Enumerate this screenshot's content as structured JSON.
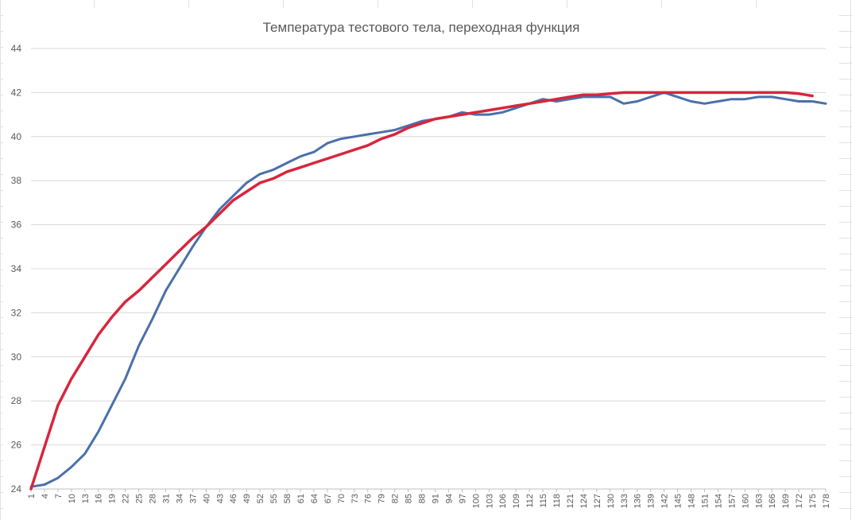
{
  "chart_data": {
    "type": "line",
    "title": "Температура тестового тела, переходная функция",
    "xlabel": "",
    "ylabel": "",
    "ylim": [
      24,
      44
    ],
    "yticks": [
      24,
      26,
      28,
      30,
      32,
      34,
      36,
      38,
      40,
      42,
      44
    ],
    "xlim": [
      1,
      178
    ],
    "xticks": [
      1,
      4,
      7,
      10,
      13,
      16,
      19,
      22,
      25,
      28,
      31,
      34,
      37,
      40,
      43,
      46,
      49,
      52,
      55,
      58,
      61,
      64,
      67,
      70,
      73,
      76,
      79,
      82,
      85,
      88,
      91,
      94,
      97,
      100,
      103,
      106,
      109,
      112,
      115,
      118,
      121,
      124,
      127,
      130,
      133,
      136,
      139,
      142,
      145,
      148,
      151,
      154,
      157,
      160,
      163,
      166,
      169,
      172,
      175,
      178
    ],
    "grid": true,
    "legend": "none",
    "series": [
      {
        "color": "#4a70aa",
        "x": [
          1,
          4,
          7,
          10,
          13,
          16,
          19,
          22,
          25,
          28,
          31,
          34,
          37,
          40,
          43,
          46,
          49,
          52,
          55,
          58,
          61,
          64,
          67,
          70,
          73,
          76,
          79,
          82,
          85,
          88,
          91,
          94,
          97,
          100,
          103,
          106,
          109,
          112,
          115,
          118,
          121,
          124,
          127,
          130,
          133,
          136,
          139,
          142,
          145,
          148,
          151,
          154,
          157,
          160,
          163,
          166,
          169,
          172,
          175,
          178
        ],
        "values": [
          24.1,
          24.2,
          24.5,
          25.0,
          25.6,
          26.6,
          27.8,
          29.0,
          30.5,
          31.7,
          33.0,
          34.0,
          35.0,
          35.9,
          36.7,
          37.3,
          37.9,
          38.3,
          38.5,
          38.8,
          39.1,
          39.3,
          39.7,
          39.9,
          40.0,
          40.1,
          40.2,
          40.3,
          40.5,
          40.7,
          40.8,
          40.9,
          41.1,
          41.0,
          41.0,
          41.1,
          41.3,
          41.5,
          41.7,
          41.6,
          41.7,
          41.8,
          41.8,
          41.8,
          41.5,
          41.6,
          41.8,
          42.0,
          41.8,
          41.6,
          41.5,
          41.6,
          41.7,
          41.7,
          41.8,
          41.8,
          41.7,
          41.6,
          41.6,
          41.5
        ]
      },
      {
        "color": "#d7263d",
        "x": [
          1,
          4,
          7,
          10,
          13,
          16,
          19,
          22,
          25,
          28,
          31,
          34,
          37,
          40,
          43,
          46,
          49,
          52,
          55,
          58,
          61,
          64,
          67,
          70,
          73,
          76,
          79,
          82,
          85,
          88,
          91,
          94,
          97,
          100,
          103,
          106,
          109,
          112,
          115,
          118,
          121,
          124,
          127,
          130,
          133,
          136,
          139,
          142,
          145,
          148,
          151,
          154,
          157,
          160,
          163,
          166,
          169,
          172,
          175
        ],
        "values": [
          24.0,
          25.9,
          27.8,
          29.0,
          30.0,
          31.0,
          31.8,
          32.5,
          33.0,
          33.6,
          34.2,
          34.8,
          35.4,
          35.9,
          36.5,
          37.1,
          37.5,
          37.9,
          38.1,
          38.4,
          38.6,
          38.8,
          39.0,
          39.2,
          39.4,
          39.6,
          39.9,
          40.1,
          40.4,
          40.6,
          40.8,
          40.9,
          41.0,
          41.1,
          41.2,
          41.3,
          41.4,
          41.5,
          41.6,
          41.7,
          41.8,
          41.9,
          41.9,
          41.95,
          42.0,
          42.0,
          42.0,
          42.0,
          42.0,
          42.0,
          42.0,
          42.0,
          42.0,
          42.0,
          42.0,
          42.0,
          42.0,
          41.95,
          41.85
        ]
      }
    ]
  },
  "colors": {
    "gridline": "#d9d9d9",
    "axis": "#bfbfbf",
    "tick_label": "#595959",
    "sheet_grid": "#e1e1e1"
  }
}
